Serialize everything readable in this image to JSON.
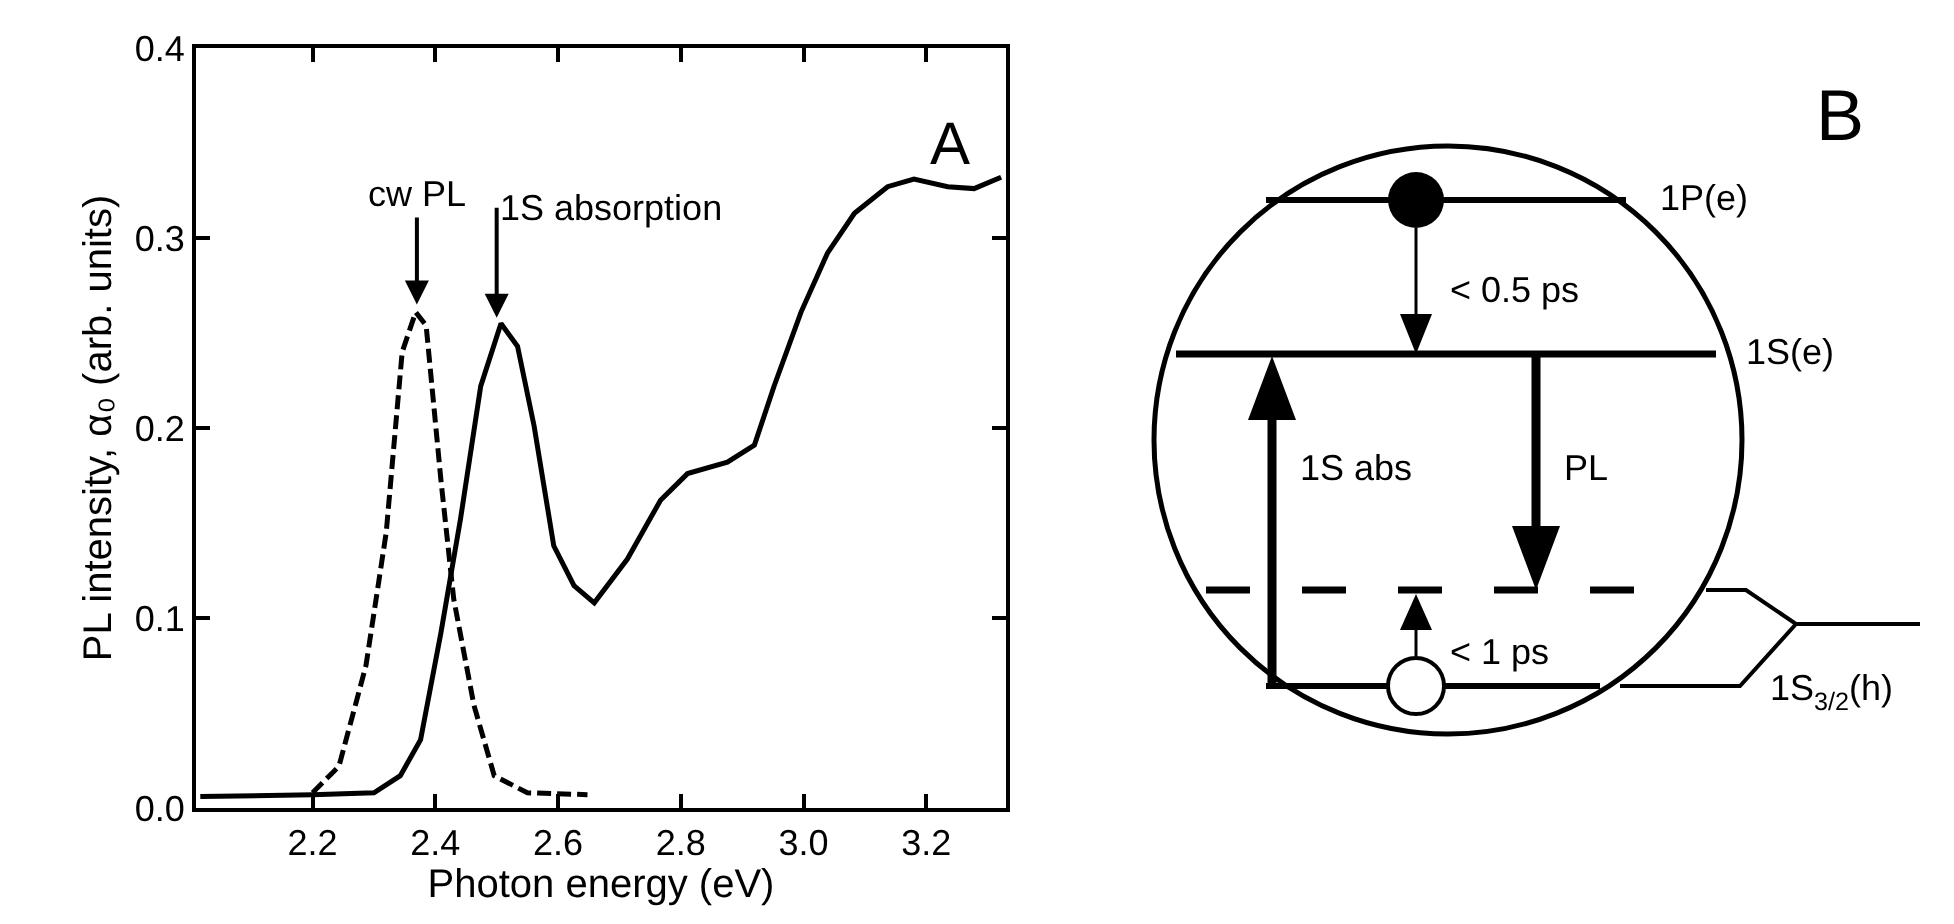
{
  "chart_data": [
    {
      "type": "line",
      "xlabel": "Photon energy (eV)",
      "ylabel": "PL intensity, α₀ (arb. units)",
      "xlim": [
        2.01,
        3.33
      ],
      "ylim": [
        0,
        0.4
      ],
      "xticks": [
        2.2,
        2.4,
        2.6,
        2.8,
        {
          "value": 3,
          "label": "3.0"
        },
        3.2
      ],
      "yticks": [
        {
          "value": 0,
          "label": "0.0"
        },
        0.1,
        0.2,
        0.3,
        0.4
      ],
      "series": [
        {
          "color": "#000000",
          "line_style": "solid",
          "x": [
            2.017,
            2.2,
            2.3,
            2.343,
            2.376,
            2.409,
            2.441,
            2.474,
            2.507,
            2.534,
            2.561,
            2.593,
            2.626,
            2.659,
            2.713,
            2.767,
            2.811,
            2.876,
            2.92,
            2.952,
            2.996,
            3.039,
            3.083,
            3.137,
            3.18,
            3.235,
            3.278,
            3.322
          ],
          "values": [
            0.006,
            0.007,
            0.008,
            0.017,
            0.036,
            0.092,
            0.152,
            0.222,
            0.255,
            0.243,
            0.201,
            0.138,
            0.117,
            0.108,
            0.131,
            0.162,
            0.176,
            0.182,
            0.191,
            0.222,
            0.261,
            0.292,
            0.313,
            0.327,
            0.331,
            0.327,
            0.326,
            0.332
          ]
        },
        {
          "color": "#000000",
          "line_style": "dashed",
          "x": [
            2.2,
            2.243,
            2.287,
            2.32,
            2.346,
            2.368,
            2.385,
            2.409,
            2.43,
            2.463,
            2.496,
            2.55,
            2.648
          ],
          "values": [
            0.008,
            0.022,
            0.075,
            0.145,
            0.24,
            0.261,
            0.254,
            0.173,
            0.11,
            0.054,
            0.017,
            0.008,
            0.007
          ]
        }
      ],
      "annotations": [
        {
          "text": "cw PL",
          "x": 2.37,
          "y": 0.265
        },
        {
          "text": "1S absorption",
          "x": 2.5,
          "y": 0.258
        },
        "A"
      ]
    },
    {
      "type": "other",
      "annotations": [
        "B",
        "1P(e)",
        "< 0.5 ps",
        "1S(e)",
        "1S abs",
        "PL",
        "< 1 ps",
        "1S$_{3/2}$(h)"
      ]
    }
  ]
}
